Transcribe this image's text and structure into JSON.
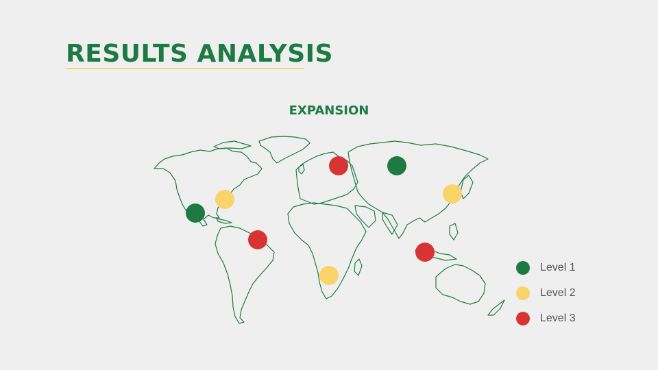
{
  "slide": {
    "title": "RESULTS ANALYSIS",
    "subtitle": "EXPANSION"
  },
  "colors": {
    "background": "#efefef",
    "accent_green": "#1e7a43",
    "accent_yellow": "#f5d56e",
    "accent_red": "#d93434",
    "underline": "#f5d56e",
    "map_outline": "#1e7a43"
  },
  "legend": [
    {
      "label": "Level 1",
      "color": "#1e7a43"
    },
    {
      "label": "Level 2",
      "color": "#f9d46a"
    },
    {
      "label": "Level 3",
      "color": "#d93434"
    }
  ],
  "markers": [
    {
      "region": "western-usa-mexico",
      "level": 1
    },
    {
      "region": "eastern-usa",
      "level": 2
    },
    {
      "region": "northern-south-america",
      "level": 3
    },
    {
      "region": "northern-europe",
      "level": 3
    },
    {
      "region": "russia",
      "level": 1
    },
    {
      "region": "east-asia",
      "level": 2
    },
    {
      "region": "southern-africa",
      "level": 2
    },
    {
      "region": "southeast-asia",
      "level": 3
    }
  ]
}
